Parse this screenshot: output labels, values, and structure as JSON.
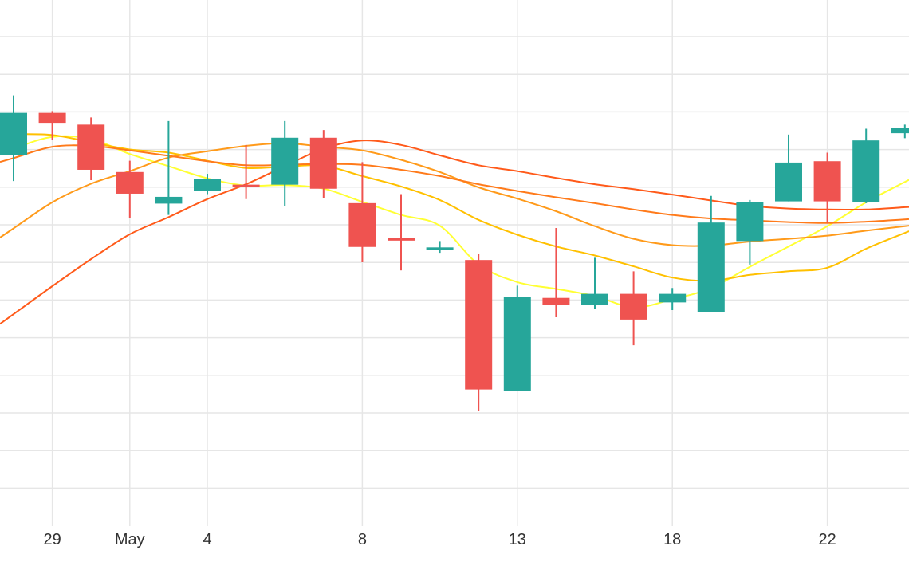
{
  "chart_data": {
    "type": "candlestick",
    "title": "",
    "xlabel": "",
    "ylabel": "",
    "grid": true,
    "y_tick_labels_visible": false,
    "ylim": [
      0,
      100
    ],
    "x_ticks": [
      {
        "label": "29",
        "index": 1
      },
      {
        "label": "May",
        "index": 3
      },
      {
        "label": "4",
        "index": 5
      },
      {
        "label": "8",
        "index": 9
      },
      {
        "label": "13",
        "index": 13
      },
      {
        "label": "18",
        "index": 17
      },
      {
        "label": "22",
        "index": 21
      }
    ],
    "colors": {
      "up": "#26a69a",
      "down": "#ef5350"
    },
    "candles": [
      {
        "o": 73.8,
        "h": 87.0,
        "l": 68.0,
        "c": 83.1
      },
      {
        "o": 83.1,
        "h": 83.5,
        "l": 77.2,
        "c": 80.9
      },
      {
        "o": 80.5,
        "h": 82.1,
        "l": 68.2,
        "c": 70.5
      },
      {
        "o": 70.0,
        "h": 72.5,
        "l": 59.8,
        "c": 65.2
      },
      {
        "o": 63.0,
        "h": 81.3,
        "l": 60.5,
        "c": 64.5
      },
      {
        "o": 65.8,
        "h": 69.6,
        "l": 65.1,
        "c": 68.4
      },
      {
        "o": 67.2,
        "h": 76.0,
        "l": 64.0,
        "c": 66.7
      },
      {
        "o": 67.2,
        "h": 81.3,
        "l": 62.5,
        "c": 77.6
      },
      {
        "o": 77.6,
        "h": 79.3,
        "l": 64.3,
        "c": 66.3
      },
      {
        "o": 63.1,
        "h": 72.2,
        "l": 50.0,
        "c": 53.4
      },
      {
        "o": 55.4,
        "h": 65.1,
        "l": 48.2,
        "c": 54.8
      },
      {
        "o": 52.8,
        "h": 54.7,
        "l": 52.1,
        "c": 53.3
      },
      {
        "o": 50.5,
        "h": 51.9,
        "l": 17.0,
        "c": 21.8
      },
      {
        "o": 21.4,
        "h": 44.8,
        "l": 21.4,
        "c": 42.4
      },
      {
        "o": 42.1,
        "h": 57.6,
        "l": 37.8,
        "c": 40.6
      },
      {
        "o": 40.5,
        "h": 51.0,
        "l": 39.6,
        "c": 43.0
      },
      {
        "o": 43.0,
        "h": 48.0,
        "l": 31.6,
        "c": 37.3
      },
      {
        "o": 41.1,
        "h": 44.3,
        "l": 39.4,
        "c": 43.0
      },
      {
        "o": 39.0,
        "h": 64.7,
        "l": 39.0,
        "c": 58.8
      },
      {
        "o": 54.7,
        "h": 63.8,
        "l": 49.5,
        "c": 63.3
      },
      {
        "o": 63.5,
        "h": 78.3,
        "l": 63.5,
        "c": 72.1
      },
      {
        "o": 72.4,
        "h": 74.3,
        "l": 58.7,
        "c": 63.5
      },
      {
        "o": 63.3,
        "h": 79.6,
        "l": 63.1,
        "c": 77.0
      },
      {
        "o": 78.6,
        "h": 80.5,
        "l": 77.5,
        "c": 79.8
      }
    ],
    "moving_averages": [
      {
        "color": "#ffff33",
        "values": [
          75.2,
          77.8,
          77.3,
          74.0,
          71.3,
          68.6,
          67.0,
          67.1,
          66.3,
          63.4,
          60.5,
          58.1,
          49.5,
          45.6,
          44.1,
          42.5,
          40.0,
          41.8,
          44.3,
          49.0,
          53.5,
          58.0,
          63.3,
          67.8
        ]
      },
      {
        "color": "#ffc000",
        "values": [
          78.4,
          78.2,
          76.6,
          75.0,
          74.3,
          72.5,
          70.9,
          71.2,
          71.4,
          69.1,
          66.8,
          63.8,
          59.4,
          56.1,
          53.5,
          51.5,
          49.1,
          46.6,
          45.9,
          47.2,
          48.0,
          48.8,
          53.0,
          56.5
        ]
      },
      {
        "color": "#ff9a1a",
        "values": [
          57.5,
          63.3,
          67.4,
          70.2,
          73.2,
          74.6,
          75.8,
          76.4,
          75.6,
          74.8,
          72.7,
          70.0,
          66.6,
          64.1,
          61.3,
          58.0,
          55.2,
          53.8,
          53.7,
          54.6,
          55.2,
          55.9,
          57.0,
          58.0
        ]
      },
      {
        "color": "#ff7a1a",
        "values": [
          73.1,
          75.6,
          75.8,
          74.8,
          73.6,
          72.4,
          71.5,
          71.6,
          71.8,
          71.6,
          70.5,
          69.1,
          67.3,
          65.8,
          64.4,
          63.1,
          61.7,
          60.5,
          59.7,
          59.3,
          58.9,
          58.7,
          59.0,
          59.5
        ]
      },
      {
        "color": "#ff5a1a",
        "values": [
          38.5,
          44.7,
          50.7,
          56.2,
          60.0,
          64.0,
          67.3,
          71.3,
          75.2,
          77.0,
          76.0,
          73.7,
          71.5,
          70.2,
          68.7,
          67.3,
          66.2,
          65.0,
          63.7,
          62.5,
          61.9,
          61.7,
          61.7,
          62.2
        ]
      }
    ]
  }
}
